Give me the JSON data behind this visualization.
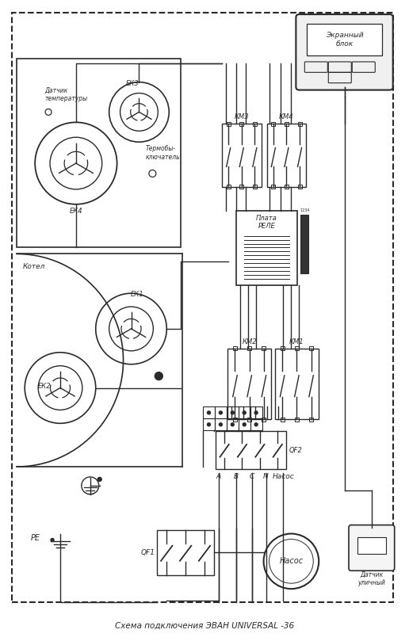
{
  "title": "Схема подключения ЭВАН UNIVERSAL -36",
  "bg_color": "#ffffff",
  "line_color": "#2a2a2a",
  "fig_width": 5.16,
  "fig_height": 8.09,
  "dpi": 100,
  "labels": {
    "ekran": "Экранный\nблок",
    "datchik_temp": "Датчик\nтемпературы",
    "ek3": "ЕК3",
    "ek4": "ЕК4",
    "termoby": "Термобы-\nключатель",
    "kotel": "Котел",
    "ek1": "ЕК1",
    "ek2": "ЕК2",
    "plata": "Плата\nРЕЛЕ",
    "km3": "КМ3",
    "km4": "КМ4",
    "km2": "КМ2",
    "km1": "КМ1",
    "qf2": "QF2",
    "qf1": "QF1",
    "nasos_circle": "Насос",
    "datchik_ulichny": "Датчик\nуличный",
    "pe": "PE",
    "abcn": [
      "A",
      "B",
      "C",
      "N",
      "Насос"
    ],
    "nums": "1234"
  }
}
